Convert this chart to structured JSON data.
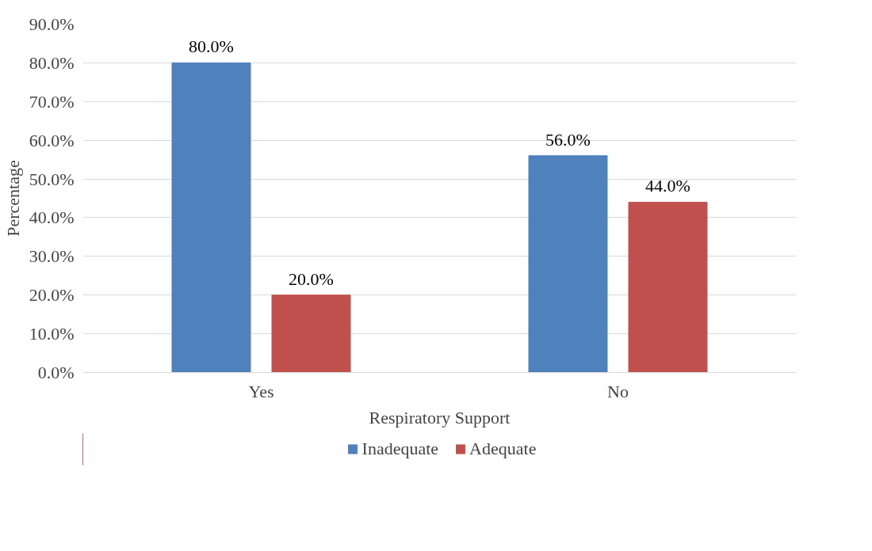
{
  "chart_data": {
    "type": "bar",
    "categories": [
      "Yes",
      "No"
    ],
    "xlabel": "Respiratory Support",
    "ylabel": "Percentage",
    "series": [
      {
        "name": "Inadequate",
        "color": "#4f81bd",
        "values": [
          80,
          56
        ],
        "value_labels": [
          "80.0%",
          "56.0%"
        ]
      },
      {
        "name": "Adequate",
        "color": "#c0504d",
        "values": [
          20,
          44
        ],
        "value_labels": [
          "20.0%",
          "44.0%"
        ]
      }
    ],
    "ylim": [
      0,
      90
    ],
    "yticks": [
      {
        "value": 0,
        "label": "0.0%"
      },
      {
        "value": 10,
        "label": "10.0%"
      },
      {
        "value": 20,
        "label": "20.0%"
      },
      {
        "value": 30,
        "label": "30.0%"
      },
      {
        "value": 40,
        "label": "40.0%"
      },
      {
        "value": 50,
        "label": "50.0%"
      },
      {
        "value": 60,
        "label": "60.0%"
      },
      {
        "value": 70,
        "label": "70.0%"
      },
      {
        "value": 80,
        "label": "80.0%"
      },
      {
        "value": 90,
        "label": "90.0%"
      }
    ],
    "grid": "y",
    "legend": "bottom"
  }
}
